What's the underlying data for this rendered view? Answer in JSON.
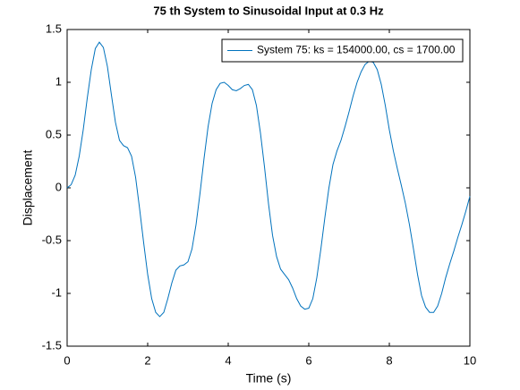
{
  "chart_data": {
    "type": "line",
    "title": "75 th System to Sinusoidal Input at 0.3 Hz",
    "xlabel": "Time (s)",
    "ylabel": "Displacement",
    "x": [
      0,
      0.1,
      0.2,
      0.3,
      0.4,
      0.5,
      0.6,
      0.7,
      0.8,
      0.9,
      1,
      1.1,
      1.2,
      1.3,
      1.4,
      1.5,
      1.6,
      1.7,
      1.8,
      1.9,
      2,
      2.1,
      2.2,
      2.3,
      2.4,
      2.5,
      2.6,
      2.7,
      2.8,
      2.9,
      3,
      3.1,
      3.2,
      3.3,
      3.4,
      3.5,
      3.6,
      3.7,
      3.8,
      3.9,
      4,
      4.1,
      4.2,
      4.3,
      4.4,
      4.5,
      4.6,
      4.7,
      4.8,
      4.9,
      5,
      5.1,
      5.2,
      5.3,
      5.4,
      5.5,
      5.6,
      5.7,
      5.8,
      5.9,
      6,
      6.1,
      6.2,
      6.3,
      6.4,
      6.5,
      6.6,
      6.7,
      6.8,
      6.9,
      7,
      7.1,
      7.2,
      7.3,
      7.4,
      7.5,
      7.6,
      7.7,
      7.8,
      7.9,
      8,
      8.1,
      8.2,
      8.3,
      8.4,
      8.5,
      8.6,
      8.7,
      8.8,
      8.9,
      9,
      9.1,
      9.2,
      9.3,
      9.4,
      9.5,
      9.6,
      9.7,
      9.8,
      9.9,
      10
    ],
    "series": [
      {
        "name": "System 75: ks = 154000.00, cs = 1700.00",
        "color": "#0072bd",
        "values": [
          0,
          0.03,
          0.12,
          0.3,
          0.55,
          0.85,
          1.12,
          1.32,
          1.38,
          1.33,
          1.15,
          0.88,
          0.62,
          0.45,
          0.4,
          0.38,
          0.3,
          0.1,
          -0.2,
          -0.52,
          -0.82,
          -1.05,
          -1.18,
          -1.22,
          -1.18,
          -1.05,
          -0.9,
          -0.78,
          -0.74,
          -0.73,
          -0.7,
          -0.58,
          -0.35,
          -0.05,
          0.28,
          0.58,
          0.8,
          0.93,
          0.99,
          1,
          0.97,
          0.93,
          0.92,
          0.94,
          0.97,
          0.98,
          0.93,
          0.78,
          0.52,
          0.2,
          -0.15,
          -0.45,
          -0.65,
          -0.77,
          -0.82,
          -0.87,
          -0.95,
          -1.05,
          -1.12,
          -1.15,
          -1.14,
          -1.05,
          -0.85,
          -0.58,
          -0.28,
          0,
          0.22,
          0.35,
          0.45,
          0.58,
          0.72,
          0.87,
          1,
          1.1,
          1.17,
          1.2,
          1.19,
          1.12,
          0.98,
          0.78,
          0.55,
          0.35,
          0.18,
          0.02,
          -0.15,
          -0.35,
          -0.58,
          -0.82,
          -1.02,
          -1.13,
          -1.18,
          -1.18,
          -1.12,
          -1,
          -0.85,
          -0.72,
          -0.6,
          -0.47,
          -0.35,
          -0.22,
          -0.08
        ]
      }
    ],
    "xlim": [
      0,
      10
    ],
    "xticks": [
      0,
      2,
      4,
      6,
      8,
      10
    ],
    "ylim": [
      -1.5,
      1.5
    ],
    "yticks": [
      -1.5,
      -1,
      -0.5,
      0,
      0.5,
      1,
      1.5
    ],
    "legend": "northeast"
  }
}
